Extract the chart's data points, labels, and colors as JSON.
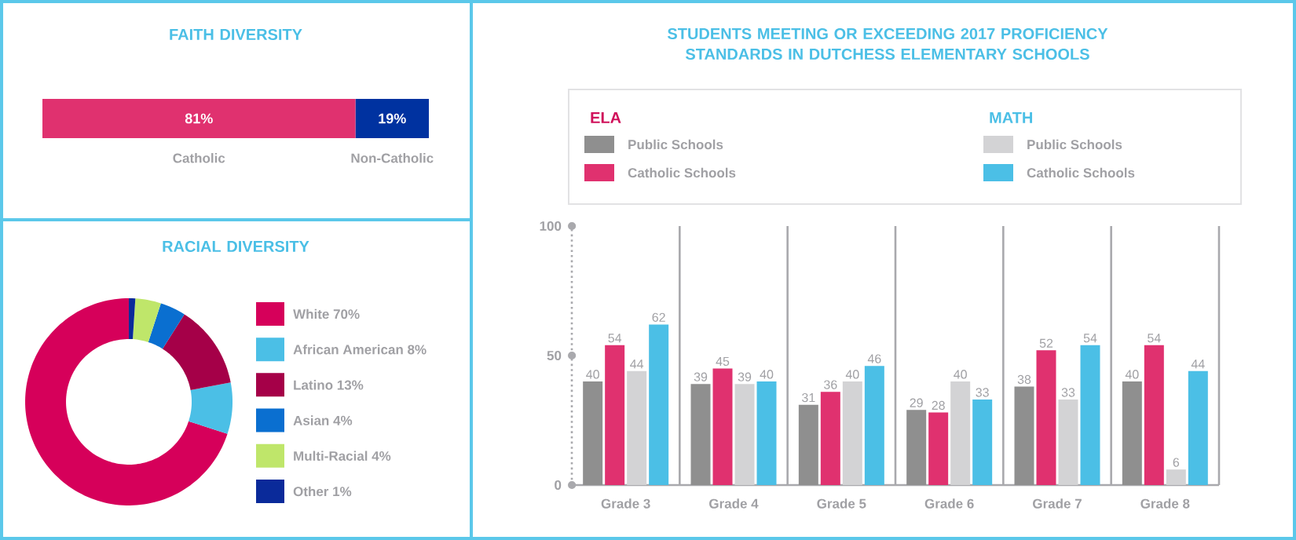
{
  "chart_data": [
    {
      "type": "bar",
      "title": "FAITH DIVERSITY",
      "orientation": "horizontal",
      "stacked": true,
      "categories": [
        null
      ],
      "tick_labels": false,
      "series": [
        {
          "name": "Catholic",
          "color": "#e0316f",
          "values": [
            81
          ],
          "value_labels": [
            "81%"
          ]
        },
        {
          "name": "Non-Catholic",
          "color": "#0032a0",
          "values": [
            19
          ],
          "value_labels": [
            "19%"
          ]
        }
      ]
    },
    {
      "type": "donut",
      "title": "RACIAL DIVERSITY",
      "legend": "right",
      "categories": [
        "White 70%",
        "African American 8%",
        "Latino 13%",
        "Asian 4%",
        "Multi-Racial 4%",
        "Other 1%"
      ],
      "values": [
        70,
        8,
        13,
        4,
        4,
        1
      ],
      "colors": [
        "#d6005a",
        "#4bbfe6",
        "#a50048",
        "#0a6fd0",
        "#bfe66a",
        "#0a2a9a"
      ]
    },
    {
      "type": "bar",
      "title": "STUDENTS MEETING OR EXCEEDING 2017 PROFICIENCY STANDARDS IN DUTCHESS ELEMENTARY SCHOOLS",
      "categories": [
        "Grade 3",
        "Grade 4",
        "Grade 5",
        "Grade 6",
        "Grade 7",
        "Grade 8"
      ],
      "ylim": [
        0,
        100
      ],
      "yticks": [
        0,
        50,
        100
      ],
      "data_labels": true,
      "legend": "top",
      "annotations": [
        "ELA",
        "MATH"
      ],
      "series": [
        {
          "name": "Public Schools",
          "color": "#8f8f8f",
          "values": [
            40,
            39,
            31,
            29,
            38,
            40
          ]
        },
        {
          "name": "Catholic Schools",
          "color": "#e0316f",
          "values": [
            54,
            45,
            36,
            28,
            52,
            54
          ]
        },
        {
          "name": "Public Schools",
          "color": "#d3d3d5",
          "values": [
            44,
            39,
            40,
            40,
            33,
            6
          ]
        },
        {
          "name": "Catholic Schools",
          "color": "#4bbfe6",
          "values": [
            62,
            40,
            46,
            33,
            54,
            44
          ]
        }
      ]
    }
  ]
}
